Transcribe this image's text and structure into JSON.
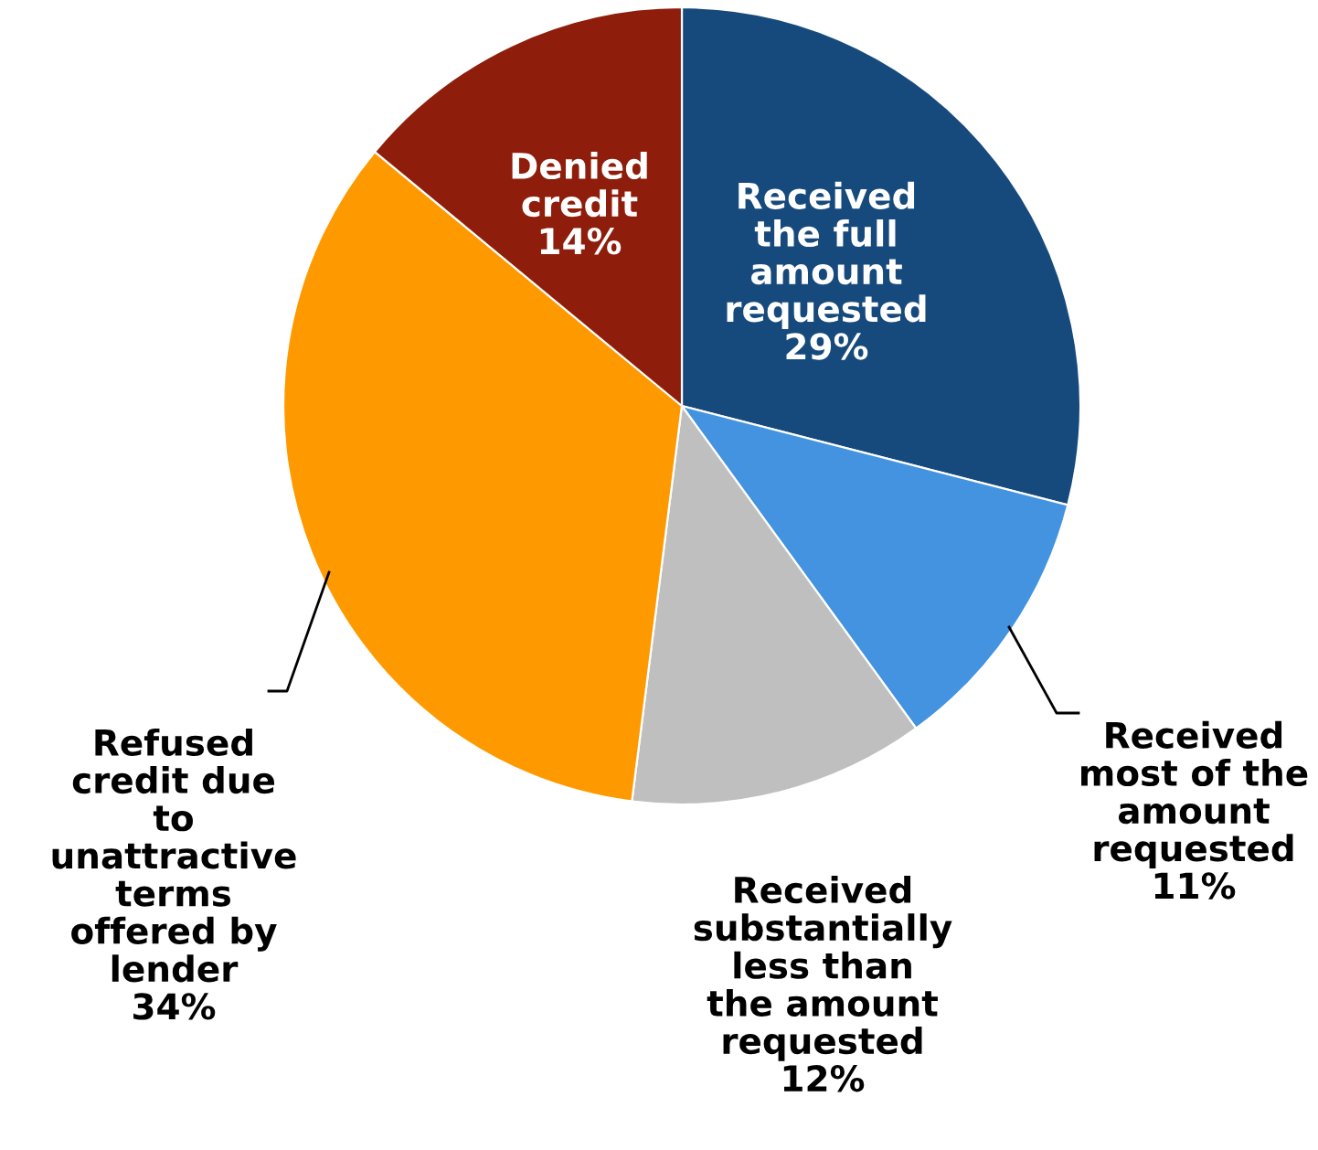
{
  "chart_data": {
    "type": "pie",
    "categories": [
      "Received\nthe full\namount\nrequested",
      "Received\nmost of the\namount\nrequested",
      "Received\nsubstantially\nless than\nthe amount\nrequested",
      "Refused\ncredit due\nto\nunattractive\nterms\noffered by\nlender",
      "Denied\ncredit"
    ],
    "values": [
      29,
      11,
      12,
      34,
      14
    ],
    "value_labels": [
      "29%",
      "11%",
      "12%",
      "34%",
      "14%"
    ],
    "colors": [
      "#174a7c",
      "#4393e0",
      "#bfbfbf",
      "#ff9900",
      "#8f1d0b"
    ]
  }
}
